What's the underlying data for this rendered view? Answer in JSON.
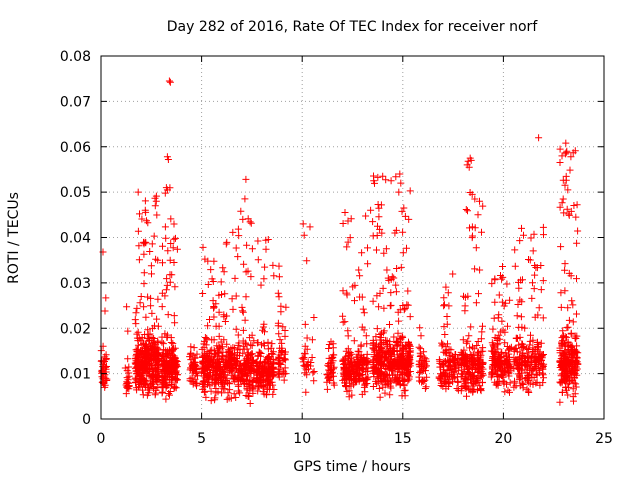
{
  "chart_data": {
    "type": "scatter",
    "title": "Day 282 of 2016, Rate Of TEC Index for receiver norf",
    "xlabel": "GPS time / hours",
    "ylabel": "ROTI / TECUs",
    "xlim": [
      0,
      25
    ],
    "ylim": [
      0,
      0.08
    ],
    "xticks": [
      "0",
      "5",
      "10",
      "15",
      "20",
      "25"
    ],
    "xtick_values": [
      0,
      5,
      10,
      15,
      20,
      25
    ],
    "yticks": [
      "0",
      "0.01",
      "0.02",
      "0.03",
      "0.04",
      "0.05",
      "0.06",
      "0.07",
      "0.08"
    ],
    "ytick_values": [
      0,
      0.01,
      0.02,
      0.03,
      0.04,
      0.05,
      0.06,
      0.07,
      0.08
    ],
    "grid": true,
    "marker": "+",
    "color": "#ff0000",
    "clusters": [
      {
        "x": [
          0.0,
          0.3
        ],
        "n": 40,
        "ymin": 0.005,
        "ymed": 0.011,
        "ymax": 0.037
      },
      {
        "x": [
          1.2,
          1.4
        ],
        "n": 25,
        "ymin": 0.004,
        "ymed": 0.008,
        "ymax": 0.027
      },
      {
        "x": [
          1.7,
          2.9
        ],
        "n": 360,
        "ymin": 0.003,
        "ymed": 0.012,
        "ymax": 0.05
      },
      {
        "x": [
          3.0,
          3.8
        ],
        "n": 220,
        "ymin": 0.003,
        "ymed": 0.011,
        "ymax": 0.051
      },
      {
        "x": [
          4.4,
          4.8
        ],
        "n": 50,
        "ymin": 0.005,
        "ymed": 0.011,
        "ymax": 0.02
      },
      {
        "x": [
          5.0,
          6.0
        ],
        "n": 200,
        "ymin": 0.003,
        "ymed": 0.011,
        "ymax": 0.038
      },
      {
        "x": [
          6.0,
          7.6
        ],
        "n": 280,
        "ymin": 0.002,
        "ymed": 0.011,
        "ymax": 0.047
      },
      {
        "x": [
          7.7,
          8.6
        ],
        "n": 180,
        "ymin": 0.004,
        "ymed": 0.01,
        "ymax": 0.04
      },
      {
        "x": [
          8.8,
          9.2
        ],
        "n": 50,
        "ymin": 0.005,
        "ymed": 0.012,
        "ymax": 0.039
      },
      {
        "x": [
          10.0,
          10.6
        ],
        "n": 30,
        "ymin": 0.004,
        "ymed": 0.012,
        "ymax": 0.043
      },
      {
        "x": [
          11.2,
          11.6
        ],
        "n": 40,
        "ymin": 0.005,
        "ymed": 0.011,
        "ymax": 0.02
      },
      {
        "x": [
          12.0,
          13.3
        ],
        "n": 220,
        "ymin": 0.004,
        "ymed": 0.011,
        "ymax": 0.046
      },
      {
        "x": [
          13.5,
          14.4
        ],
        "n": 200,
        "ymin": 0.004,
        "ymed": 0.012,
        "ymax": 0.054
      },
      {
        "x": [
          14.4,
          15.4
        ],
        "n": 240,
        "ymin": 0.004,
        "ymed": 0.012,
        "ymax": 0.054
      },
      {
        "x": [
          15.8,
          16.2
        ],
        "n": 40,
        "ymin": 0.004,
        "ymed": 0.011,
        "ymax": 0.022
      },
      {
        "x": [
          16.8,
          17.8
        ],
        "n": 120,
        "ymin": 0.004,
        "ymed": 0.011,
        "ymax": 0.034
      },
      {
        "x": [
          17.9,
          19.0
        ],
        "n": 200,
        "ymin": 0.003,
        "ymed": 0.011,
        "ymax": 0.05
      },
      {
        "x": [
          19.4,
          20.4
        ],
        "n": 160,
        "ymin": 0.004,
        "ymed": 0.012,
        "ymax": 0.035
      },
      {
        "x": [
          20.5,
          22.0
        ],
        "n": 220,
        "ymin": 0.004,
        "ymed": 0.012,
        "ymax": 0.043
      },
      {
        "x": [
          22.8,
          23.7
        ],
        "n": 240,
        "ymin": 0.003,
        "ymed": 0.012,
        "ymax": 0.06
      }
    ],
    "points": [
      {
        "x": 3.4,
        "y": 0.0745
      },
      {
        "x": 3.45,
        "y": 0.0742
      },
      {
        "x": 3.3,
        "y": 0.0578
      },
      {
        "x": 3.35,
        "y": 0.0572
      },
      {
        "x": 3.25,
        "y": 0.051
      },
      {
        "x": 3.3,
        "y": 0.0505
      },
      {
        "x": 2.7,
        "y": 0.047
      },
      {
        "x": 2.75,
        "y": 0.048
      },
      {
        "x": 2.2,
        "y": 0.046
      },
      {
        "x": 1.85,
        "y": 0.05
      },
      {
        "x": 7.2,
        "y": 0.0528
      },
      {
        "x": 7.15,
        "y": 0.0485
      },
      {
        "x": 6.95,
        "y": 0.0458
      },
      {
        "x": 7.05,
        "y": 0.044
      },
      {
        "x": 13.4,
        "y": 0.046
      },
      {
        "x": 13.5,
        "y": 0.0435
      },
      {
        "x": 14.85,
        "y": 0.054
      },
      {
        "x": 14.9,
        "y": 0.052
      },
      {
        "x": 14.8,
        "y": 0.05
      },
      {
        "x": 14.0,
        "y": 0.0535
      },
      {
        "x": 15.05,
        "y": 0.0465
      },
      {
        "x": 18.35,
        "y": 0.0575
      },
      {
        "x": 18.4,
        "y": 0.057
      },
      {
        "x": 18.25,
        "y": 0.0568
      },
      {
        "x": 18.3,
        "y": 0.0555
      },
      {
        "x": 18.2,
        "y": 0.056
      },
      {
        "x": 18.45,
        "y": 0.0495
      },
      {
        "x": 21.75,
        "y": 0.062
      },
      {
        "x": 23.1,
        "y": 0.0608
      },
      {
        "x": 23.15,
        "y": 0.059
      },
      {
        "x": 23.2,
        "y": 0.0505
      },
      {
        "x": 23.6,
        "y": 0.0445
      },
      {
        "x": 10.05,
        "y": 0.043
      },
      {
        "x": 10.1,
        "y": 0.0405
      },
      {
        "x": 0.1,
        "y": 0.0368
      },
      {
        "x": 0.2,
        "y": 0.0238
      },
      {
        "x": 20.9,
        "y": 0.042
      },
      {
        "x": 21.0,
        "y": 0.0405
      }
    ]
  }
}
